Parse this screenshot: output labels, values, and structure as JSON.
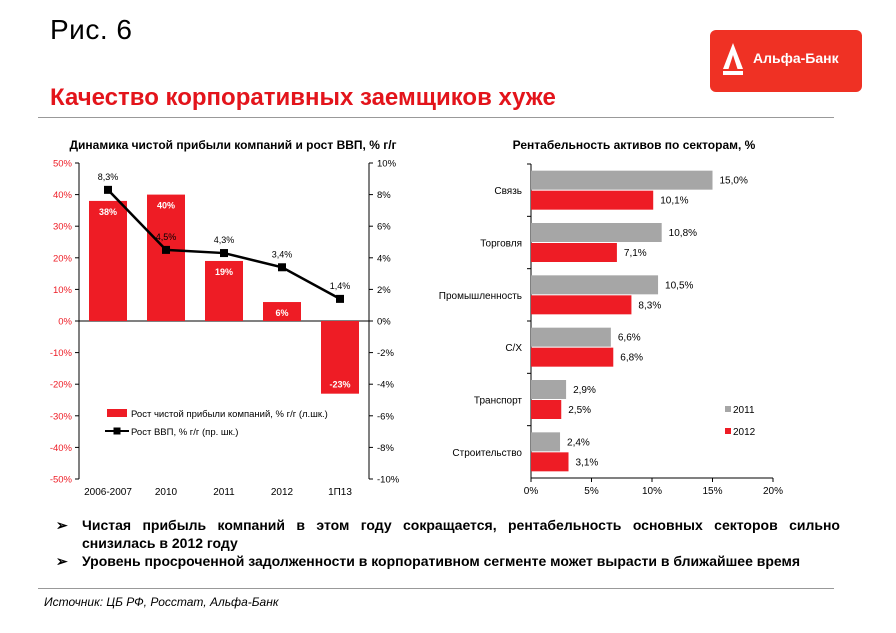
{
  "figure_label": "Рис. 6",
  "logo": {
    "text": "Альфа-Банк",
    "color": "#EF3124"
  },
  "headline": "Качество корпоративных заемщиков хуже",
  "colors": {
    "red": "#EE1C25",
    "gray": "#A6A6A6",
    "line": "#000000",
    "accent": "#E3141B"
  },
  "chart_data": [
    {
      "type": "bar",
      "title": "Динамика чистой прибыли компаний и рост ВВП, % г/г",
      "categories": [
        "2006-2007",
        "2010",
        "2011",
        "2012",
        "1П13"
      ],
      "series": [
        {
          "name": "Рост чистой прибыли компаний, % г/г (л.шк.)",
          "type": "bar",
          "axis": "left",
          "values": [
            38,
            40,
            19,
            6,
            -23
          ],
          "labels": [
            "38%",
            "40%",
            "19%",
            "6%",
            "-23%"
          ]
        },
        {
          "name": "Рост ВВП, % г/г (пр. шк.)",
          "type": "line",
          "axis": "right",
          "values": [
            8.3,
            4.5,
            4.3,
            3.4,
            1.4
          ],
          "labels": [
            "8,3%",
            "4,5%",
            "4,3%",
            "3,4%",
            "1,4%"
          ]
        }
      ],
      "y_left": {
        "ylim": [
          -50,
          50
        ],
        "ticks": [
          "50%",
          "40%",
          "30%",
          "20%",
          "10%",
          "0%",
          "-10%",
          "-20%",
          "-30%",
          "-40%",
          "-50%"
        ]
      },
      "y_right": {
        "ylim": [
          -10,
          10
        ],
        "ticks": [
          "10%",
          "8%",
          "6%",
          "4%",
          "2%",
          "0%",
          "-2%",
          "-4%",
          "-6%",
          "-8%",
          "-10%"
        ]
      },
      "legend": "bottom-center"
    },
    {
      "type": "bar",
      "orientation": "horizontal",
      "title": "Рентабельность активов по секторам, %",
      "categories": [
        "Связь",
        "Торговля",
        "Промышленность",
        "С/Х",
        "Транспорт",
        "Строительство"
      ],
      "series": [
        {
          "name": "2011",
          "values": [
            15.0,
            10.8,
            10.5,
            6.6,
            2.9,
            2.4
          ],
          "labels": [
            "15,0%",
            "10,8%",
            "10,5%",
            "6,6%",
            "2,9%",
            "2,4%"
          ]
        },
        {
          "name": "2012",
          "values": [
            10.1,
            7.1,
            8.3,
            6.8,
            2.5,
            3.1
          ],
          "labels": [
            "10,1%",
            "7,1%",
            "8,3%",
            "6,8%",
            "2,5%",
            "3,1%"
          ]
        }
      ],
      "xlim": [
        0,
        20
      ],
      "x_ticks": [
        "0%",
        "5%",
        "10%",
        "15%",
        "20%"
      ],
      "legend": "bottom-right"
    }
  ],
  "bullets": [
    "Чистая прибыль компаний в этом году сокращается, рентабельность основных секторов сильно снизилась в 2012 году",
    "Уровень просроченной задолженности в корпоративном сегменте может вырасти в ближайшее время"
  ],
  "bullet_marker": "➢",
  "source": "Источник: ЦБ РФ, Росстат, Альфа-Банк"
}
